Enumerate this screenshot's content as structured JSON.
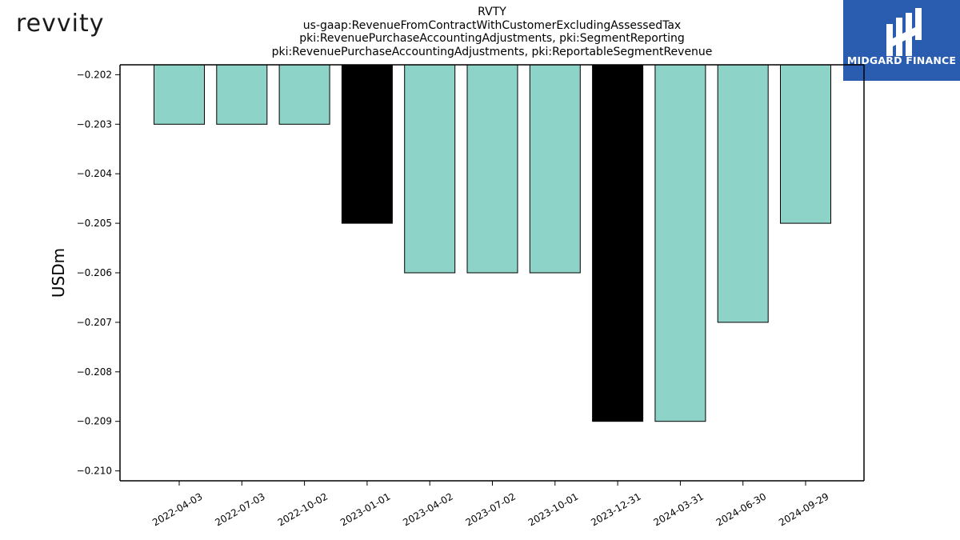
{
  "logo": {
    "text": "revvity"
  },
  "brand": {
    "name": "MIDGARD FINANCE",
    "color": "#2a5db0"
  },
  "chart_data": {
    "type": "bar",
    "title": [
      "RVTY",
      "us-gaap:RevenueFromContractWithCustomerExcludingAssessedTax",
      "pki:RevenuePurchaseAccountingAdjustments, pki:SegmentReporting",
      "pki:RevenuePurchaseAccountingAdjustments, pki:ReportableSegmentRevenue"
    ],
    "ylabel": "USDm",
    "xlabel": "",
    "ylim": [
      -0.2102,
      -0.2018
    ],
    "yticks": [
      -0.202,
      -0.203,
      -0.204,
      -0.205,
      -0.206,
      -0.207,
      -0.208,
      -0.209,
      -0.21
    ],
    "ytick_labels": [
      "−0.202",
      "−0.203",
      "−0.204",
      "−0.205",
      "−0.206",
      "−0.207",
      "−0.208",
      "−0.209",
      "−0.210"
    ],
    "categories": [
      "2022-04-03",
      "2022-07-03",
      "2022-10-02",
      "2023-01-01",
      "2023-04-02",
      "2023-07-02",
      "2023-10-01",
      "2023-12-31",
      "2024-03-31",
      "2024-06-30",
      "2024-09-29"
    ],
    "values": [
      -0.203,
      -0.203,
      -0.203,
      -0.205,
      -0.206,
      -0.206,
      -0.206,
      -0.209,
      -0.209,
      -0.207,
      -0.205
    ],
    "bar_colors": [
      "#8dd3c7",
      "#8dd3c7",
      "#8dd3c7",
      "#000000",
      "#8dd3c7",
      "#8dd3c7",
      "#8dd3c7",
      "#000000",
      "#8dd3c7",
      "#8dd3c7",
      "#8dd3c7"
    ],
    "grid": false,
    "legend": "none"
  }
}
